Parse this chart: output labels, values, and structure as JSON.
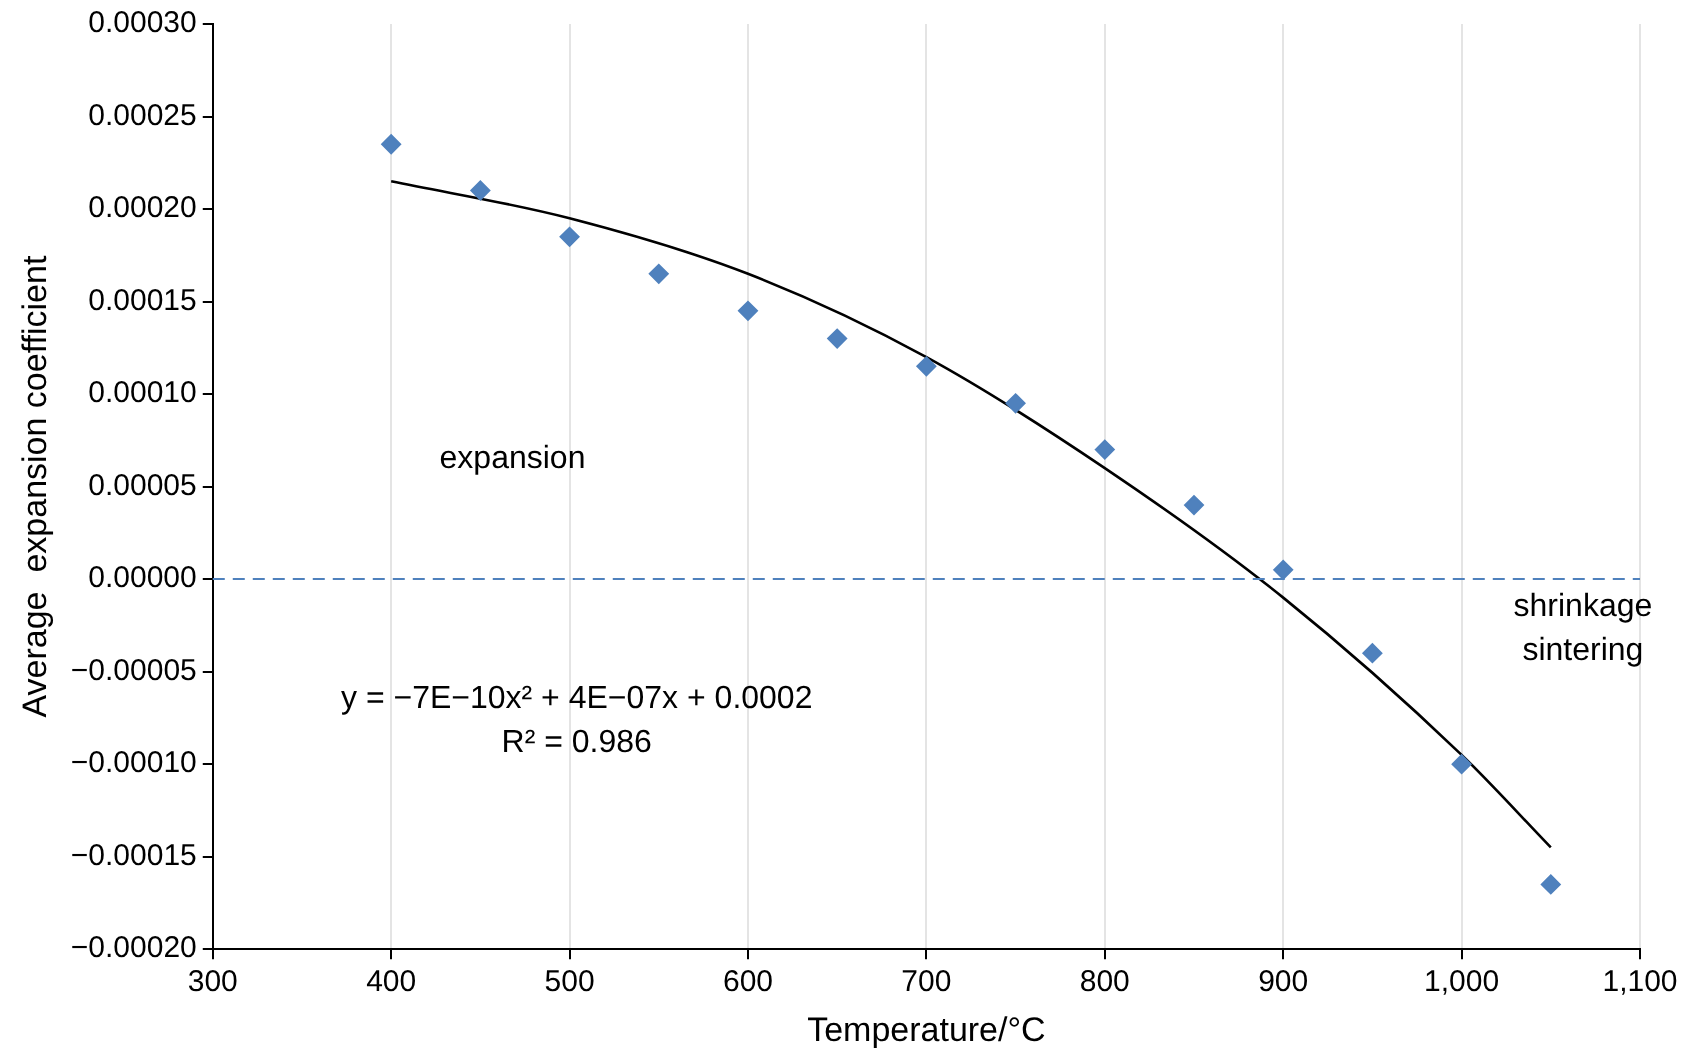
{
  "chart_data": {
    "type": "scatter",
    "xlabel": "Temperature/°C",
    "ylabel": "Average  expansion coefficient",
    "xlim": [
      300,
      1100
    ],
    "xticks": [
      300,
      400,
      500,
      600,
      700,
      800,
      900,
      {
        "value": 1000,
        "label": "1,000"
      },
      {
        "value": 1100,
        "label": "1,100"
      }
    ],
    "ylim": [
      -0.0002,
      0.0003
    ],
    "yticks": [
      {
        "value": -0.0002,
        "label": "−0.00020"
      },
      {
        "value": -0.00015,
        "label": "−0.00015"
      },
      {
        "value": -0.0001,
        "label": "−0.00010"
      },
      {
        "value": -5e-05,
        "label": "−0.00005"
      },
      {
        "value": 0,
        "label": "0.00000"
      },
      {
        "value": 5e-05,
        "label": "0.00005"
      },
      {
        "value": 0.0001,
        "label": "0.00010"
      },
      {
        "value": 0.00015,
        "label": "0.00015"
      },
      {
        "value": 0.0002,
        "label": "0.00020"
      },
      {
        "value": 0.00025,
        "label": "0.00025"
      },
      {
        "value": 0.0003,
        "label": "0.00030"
      }
    ],
    "grid": "x",
    "legend": false,
    "series": [
      {
        "color": "#4f81bd",
        "marker": "diamond",
        "x": [
          400,
          450,
          500,
          550,
          600,
          650,
          700,
          750,
          800,
          850,
          900,
          950,
          1000,
          1050
        ],
        "values": [
          0.000235,
          0.00021,
          0.000185,
          0.000165,
          0.000145,
          0.00013,
          0.000115,
          9.5e-05,
          7e-05,
          4e-05,
          5e-06,
          -4e-05,
          -0.0001,
          -0.000165
        ]
      },
      {
        "type": "line",
        "color": "#000000",
        "marker": "none",
        "line_style": "solid",
        "x": [
          400,
          500,
          600,
          700,
          800,
          900,
          1000,
          1050
        ],
        "values": [
          0.000215,
          0.000195,
          0.000165,
          0.00012,
          6e-05,
          -1e-05,
          -9.5e-05,
          -0.000145
        ]
      }
    ],
    "ref_lines": [
      {
        "axis": "y",
        "value": 0,
        "color": "#4f81bd",
        "line_style": "dashed"
      }
    ],
    "annotations": [
      "expansion",
      "shrinkage\nsintering",
      "y = −7E−10x² + 4E−07x + 0.0002\nR² = 0.986"
    ]
  }
}
